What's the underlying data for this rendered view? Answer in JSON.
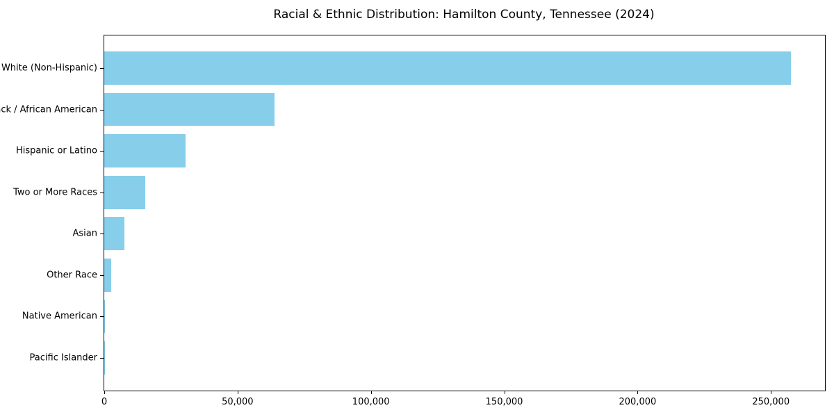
{
  "chart_data": {
    "type": "bar",
    "orientation": "horizontal",
    "title": "Racial & Ethnic Distribution: Hamilton County, Tennessee (2024)",
    "categories": [
      "White (Non-Hispanic)",
      "Black / African American",
      "Hispanic or Latino",
      "Two or More Races",
      "Asian",
      "Other Race",
      "Native American",
      "Pacific Islander"
    ],
    "values": [
      257400,
      63800,
      30500,
      15300,
      7600,
      2500,
      200,
      80
    ],
    "bar_color": "#87CEEB",
    "background_color": "#ffffff",
    "text_color": "#000000",
    "xlim": [
      0,
      270270
    ],
    "x_ticks": [
      0,
      50000,
      100000,
      150000,
      200000,
      250000
    ],
    "x_tick_labels": [
      "0",
      "50,000",
      "100,000",
      "150,000",
      "200,000",
      "250,000"
    ],
    "xlabel": "",
    "ylabel": "",
    "grid": false,
    "legend": null
  }
}
